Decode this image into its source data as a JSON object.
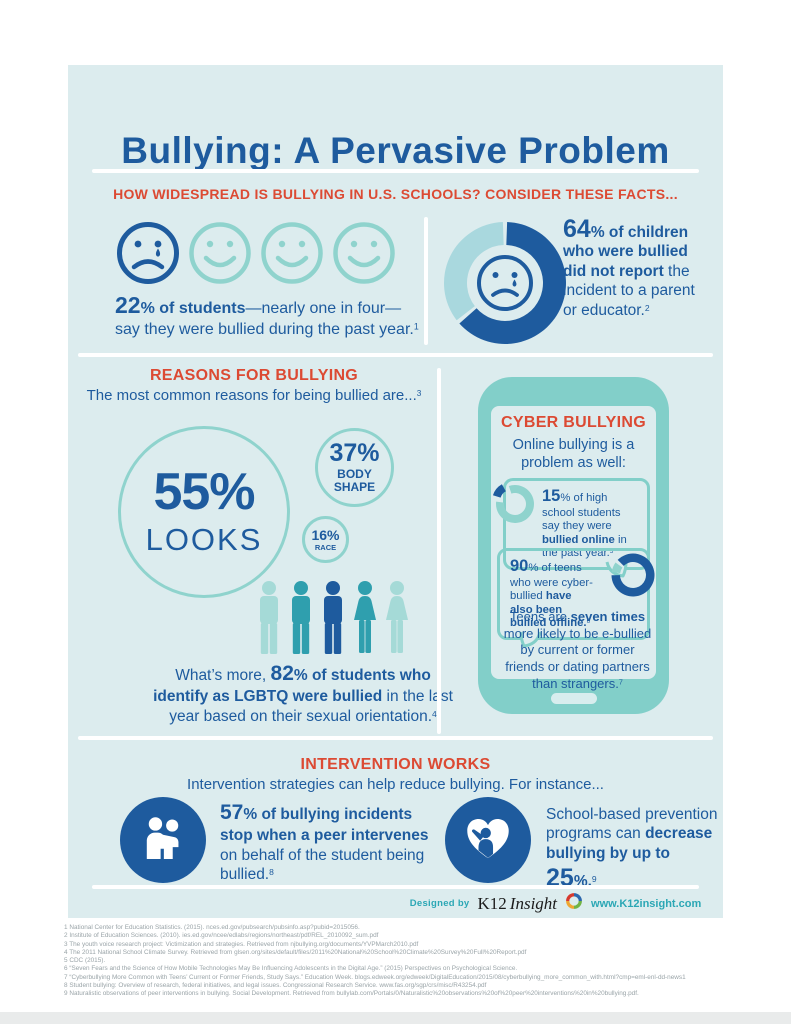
{
  "colors": {
    "pageBg": "#ffffff",
    "posterBg": "#dcecee",
    "dark": "#1e5b9e",
    "red": "#dc4a33",
    "tealLight": "#8fd3cd",
    "tealMid": "#2f9fae",
    "personLight": "#a5dad7",
    "tealBorder": "#82cfc9",
    "donutLight": "#a9d8de",
    "tealText": "#2ba7b5",
    "footnoteGray": "#9aa4a8",
    "homeBtn": "#d8edee",
    "logoText": "#1b1b1b",
    "logoRed": "#d63a2f",
    "logoYellow": "#efa733",
    "logoGreen": "#71b344",
    "logoBlue": "#2c67ad",
    "bottomStrip": "#e9ebeb"
  },
  "title": "Bullying: A Pervasive Problem",
  "section_facts": {
    "heading": "HOW WIDESPREAD IS BULLYING IN U.S. SCHOOLS? CONSIDER THESE FACTS...",
    "fact_students": {
      "line1": [
        {
          "t": "22",
          "c": "n22 b"
        },
        {
          "t": "% of students",
          "c": "b"
        },
        {
          "t": "—nearly one in four—"
        }
      ],
      "line2": [
        {
          "t": "say they were bullied during the past year."
        },
        {
          "t": "1",
          "c": "sup"
        }
      ]
    },
    "fact_report": {
      "runs": [
        {
          "t": "64",
          "c": "n64 b"
        },
        {
          "t": "% of ",
          "c": "b"
        },
        {
          "t": "children who were bullied did not report",
          "c": "b"
        },
        {
          "t": " the incident to a parent or educator."
        },
        {
          "t": "2",
          "c": "sup"
        }
      ]
    }
  },
  "faces_pictogram": {
    "total": 4,
    "highlighted": 1,
    "meaning": "nearly one in four students bullied"
  },
  "reasons": {
    "heading": "REASONS FOR BULLYING",
    "sub": [
      {
        "t": "The most common reasons for being bullied are..."
      },
      {
        "t": "3",
        "c": "sup"
      }
    ],
    "lgbtq": [
      {
        "t": "What’s more, "
      },
      {
        "t": "82",
        "c": "n82 b"
      },
      {
        "t": "% of students who identify as LGBTQ were bullied",
        "c": "b"
      },
      {
        "t": " in the last year based on their sexual orientation."
      },
      {
        "t": "4",
        "c": "sup"
      }
    ]
  },
  "cyber": {
    "heading": "CYBER BULLYING",
    "sub_line1": "Online bullying is a",
    "sub_line2": "problem as well:",
    "bubble_online": [
      {
        "t": "15",
        "c": "n15 b"
      },
      {
        "t": "% of high school students say they were "
      },
      {
        "t": "bullied online",
        "c": "b"
      },
      {
        "t": " in the past year."
      },
      {
        "t": "5",
        "c": "sup"
      }
    ],
    "bubble_offline": [
      {
        "t": "90",
        "c": "n15 b"
      },
      {
        "t": "% of teens who were cyber-bullied "
      },
      {
        "t": "have also been bullied offline.",
        "c": "b"
      },
      {
        "t": "6",
        "c": "sup"
      }
    ],
    "para": [
      {
        "t": "Teens are "
      },
      {
        "t": "seven times",
        "c": "b"
      },
      {
        "t": " more likely to be e-bullied by current or former friends or dating partners than strangers."
      },
      {
        "t": "7",
        "c": "sup"
      }
    ]
  },
  "intervention": {
    "heading": "INTERVENTION WORKS",
    "sub": "Intervention strategies can help reduce bullying. For instance...",
    "peer": [
      {
        "t": "57",
        "c": "n57 b"
      },
      {
        "t": "% of bullying incidents stop when a peer intervenes",
        "c": "b"
      },
      {
        "t": " on behalf of the student being bullied."
      },
      {
        "t": "8",
        "c": "sup"
      }
    ],
    "programs": [
      {
        "t": "School-based prevention programs can "
      },
      {
        "t": "decrease bullying by up to ",
        "c": "b"
      },
      {
        "t": "25",
        "c": "n25 b"
      },
      {
        "t": "%.",
        "c": "b"
      },
      {
        "t": "9",
        "c": "sup"
      }
    ]
  },
  "footer": {
    "designed_by": "Designed by",
    "brand_k12": "K12",
    "brand_insight": "Insight",
    "url": "www.K12insight.com"
  },
  "footnotes": [
    "1 National Center for Education Statistics. (2015). nces.ed.gov/pubsearch/pubsinfo.asp?pubid=2015056.",
    "2 Institute of Education Sciences. (2010). ies.ed.gov/ncee/edlabs/regions/northeast/pdf/REL_2010092_sum.pdf",
    "3 The youth voice research project: Victimization and strategies. Retrieved from njbullying.org/documents/YVPMarch2010.pdf",
    "4 The 2011 National School Climate Survey. Retrieved from glsen.org/sites/default/files/2011%20National%20School%20Climate%20Survey%20Full%20Report.pdf",
    "5 CDC (2015).",
    "6 “Seven Fears and the Science of How Mobile Technologies May Be Influencing Adolescents in the Digital Age.” (2015) Perspectives on Psychological Science.",
    "7 “Cyberbullying More Common with Teens’ Current or Former Friends, Study Says.” Education Week. blogs.edweek.org/edweek/DigitalEducation/2015/08/cyberbullying_more_common_with.html?cmp=eml-enl-dd-news1",
    "8 Student bullying: Overview of research, federal initiatives, and legal issues. Congressional Research Service. www.fas.org/sgp/crs/misc/R43254.pdf",
    "9 Naturalistic observations of peer interventions in bullying. Social Development. Retrieved from bullylab.com/Portals/0/Naturalistic%20observations%20of%20peer%20interventions%20in%20bullying.pdf."
  ],
  "chart_data": [
    {
      "id": "donut-did-not-report",
      "type": "pie",
      "subtype": "donut",
      "title": "64% of children who were bullied did not report the incident to a parent or educator",
      "size": 124,
      "r_outer": 61,
      "r_inner": 38,
      "start_deg": 0,
      "gap_deg": 4,
      "segments": [
        {
          "label": "did not report",
          "value": 64,
          "color": "#1e5b9e"
        },
        {
          "label": "other",
          "value": 36,
          "color": "#a9d8de"
        }
      ]
    },
    {
      "id": "reasons-bubbles",
      "type": "bubble",
      "title": "Most common reasons for being bullied",
      "points": [
        {
          "label": "LOOKS",
          "value": 55,
          "display": "55%"
        },
        {
          "label": "BODY SHAPE",
          "value": 37,
          "display": "37%"
        },
        {
          "label": "RACE",
          "value": 16,
          "display": "16%"
        }
      ]
    },
    {
      "id": "donut-bullied-online",
      "type": "pie",
      "subtype": "donut",
      "title": "15% of high school students were bullied online in the past year",
      "size": 38,
      "r_outer": 19,
      "r_inner": 11,
      "start_deg": -78,
      "gap_deg": 10,
      "segments": [
        {
          "label": "bullied online",
          "value": 15,
          "color": "#1e5b9e",
          "explode": 5
        },
        {
          "label": "other",
          "value": 85,
          "color": "#8fd3cd"
        }
      ]
    },
    {
      "id": "donut-bullied-offline",
      "type": "pie",
      "subtype": "donut",
      "title": "90% of cyber-bullied teens have also been bullied offline",
      "size": 44,
      "r_outer": 21.5,
      "r_inner": 13,
      "start_deg": -50,
      "gap_deg": 9,
      "segments": [
        {
          "label": "also bullied offline",
          "value": 90,
          "color": "#1e5b9e"
        },
        {
          "label": "other",
          "value": 10,
          "color": "#8fd3cd"
        }
      ]
    }
  ]
}
